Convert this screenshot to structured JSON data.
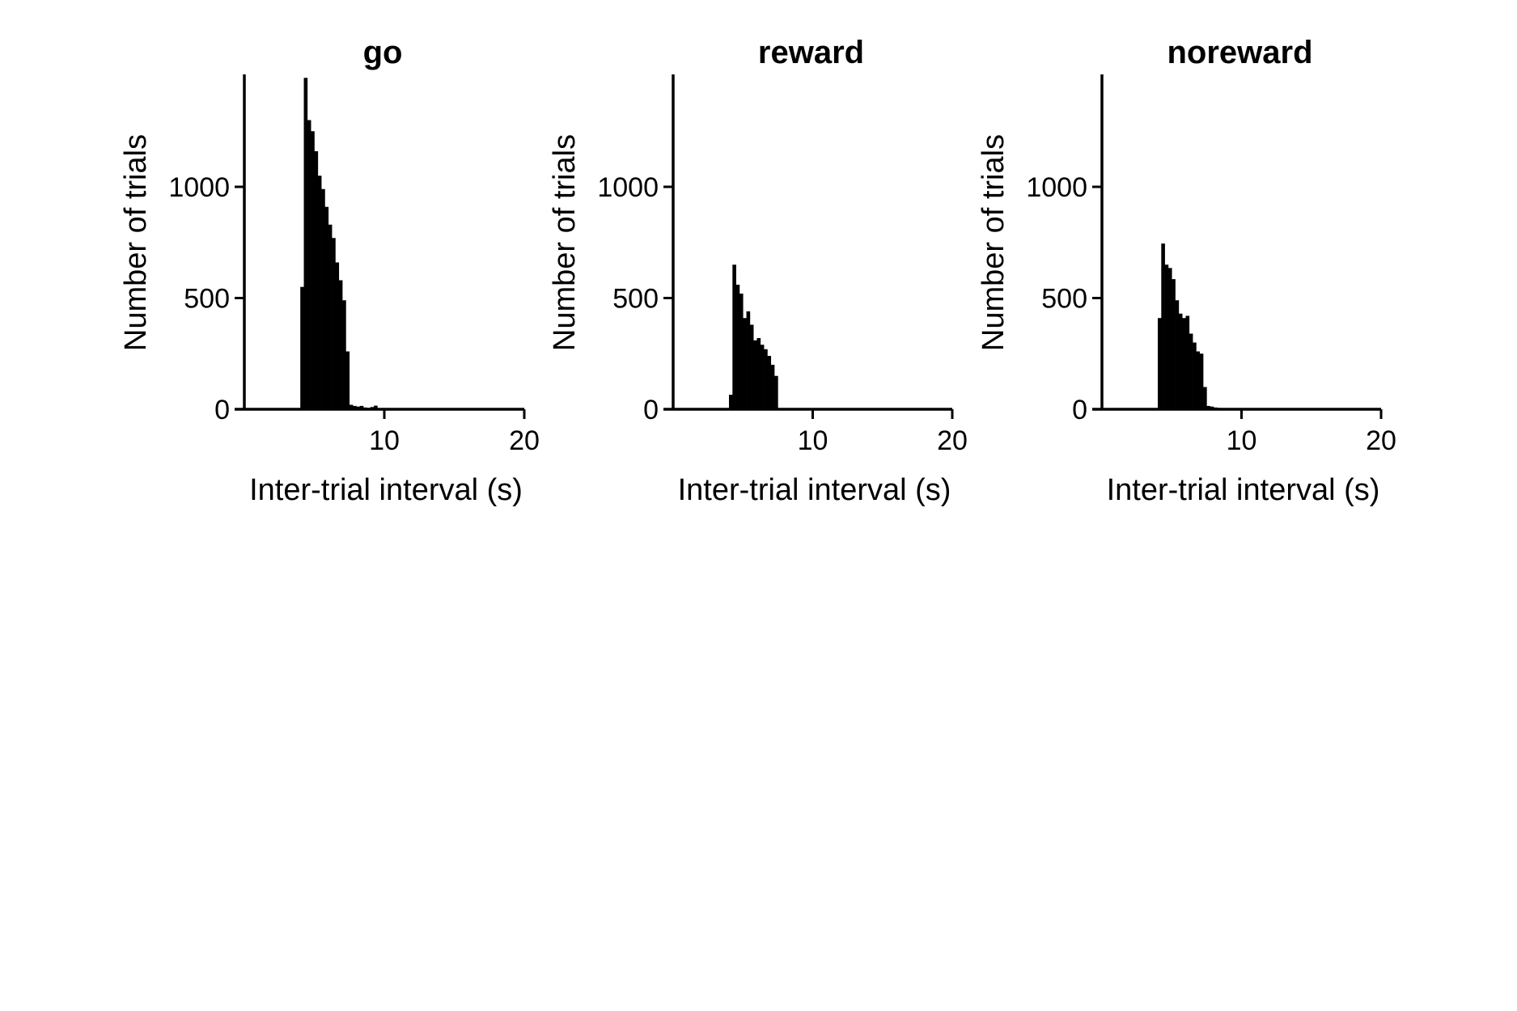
{
  "chart_data": [
    {
      "type": "bar",
      "title": "go",
      "xlabel": "Inter-trial interval (s)",
      "ylabel": "Number of trials",
      "xlim": [
        0,
        20
      ],
      "ylim": [
        0,
        1500
      ],
      "xticks": [
        10,
        20
      ],
      "xtick_labels": [
        "10",
        "20"
      ],
      "yticks": [
        0,
        500,
        1000
      ],
      "ytick_labels": [
        "0",
        "500",
        "1000"
      ],
      "bin_width": 0.25,
      "bin_start": 4.0,
      "values": [
        550,
        1490,
        1300,
        1250,
        1160,
        1050,
        990,
        910,
        830,
        770,
        660,
        580,
        490,
        260,
        20,
        15,
        12,
        15,
        8,
        6,
        10,
        16,
        5,
        4,
        3,
        2
      ],
      "grid": false,
      "legend": "none"
    },
    {
      "type": "bar",
      "title": "reward",
      "xlabel": "Inter-trial interval (s)",
      "ylabel": "Number of trials",
      "xlim": [
        0,
        20
      ],
      "ylim": [
        0,
        1500
      ],
      "xticks": [
        10,
        20
      ],
      "xtick_labels": [
        "10",
        "20"
      ],
      "yticks": [
        0,
        500,
        1000
      ],
      "yticks_labels_note": "",
      "ytick_labels": [
        "0",
        "500",
        "1000"
      ],
      "bin_width": 0.25,
      "bin_start": 4.0,
      "values": [
        65,
        650,
        560,
        520,
        410,
        440,
        380,
        310,
        320,
        290,
        270,
        240,
        200,
        150,
        3,
        3,
        2,
        2,
        2,
        3,
        2,
        1
      ],
      "grid": false,
      "legend": "none"
    },
    {
      "type": "bar",
      "title": "noreward",
      "xlabel": "Inter-trial interval (s)",
      "ylabel": "Number of trials",
      "xlim": [
        0,
        20
      ],
      "ylim": [
        0,
        1500
      ],
      "xticks": [
        10,
        20
      ],
      "xtick_labels": [
        "10",
        "20"
      ],
      "yticks": [
        0,
        500,
        1000
      ],
      "ytick_labels": [
        "0",
        "500",
        "1000"
      ],
      "bin_width": 0.25,
      "bin_start": 4.0,
      "values": [
        410,
        745,
        650,
        635,
        585,
        490,
        430,
        410,
        420,
        340,
        300,
        260,
        250,
        100,
        15,
        12,
        8,
        6,
        5,
        4,
        3,
        2
      ],
      "grid": false,
      "legend": "none"
    }
  ]
}
